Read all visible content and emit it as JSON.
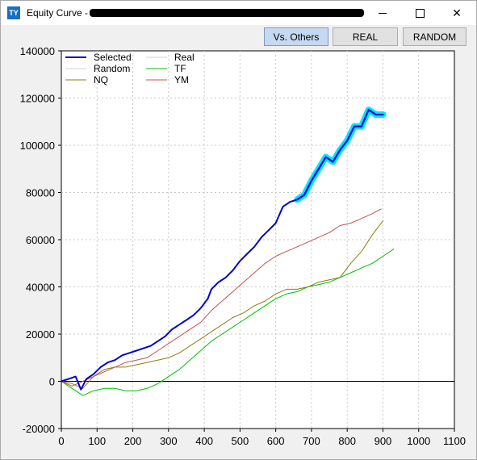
{
  "window": {
    "title": "Equity Curve -",
    "app_icon": "TY",
    "title_redacted": true
  },
  "toolbar": {
    "buttons": [
      {
        "label": "Vs. Others",
        "active": true
      },
      {
        "label": "REAL",
        "active": false
      },
      {
        "label": "RANDOM",
        "active": false
      }
    ]
  },
  "chart_data": {
    "type": "line",
    "xlim": [
      0,
      1100
    ],
    "ylim": [
      -20000,
      140000
    ],
    "x_ticks": [
      0,
      100,
      200,
      300,
      400,
      500,
      600,
      700,
      800,
      900,
      1000,
      1100
    ],
    "y_ticks": [
      -20000,
      0,
      20000,
      40000,
      60000,
      80000,
      100000,
      120000,
      140000
    ],
    "grid": true,
    "legend_position": "top-left",
    "legend": [
      {
        "name": "Selected",
        "color": "#0000d0"
      },
      {
        "name": "Real",
        "color": "#cfcfcf"
      },
      {
        "name": "Random",
        "color": "#cfcfcf"
      },
      {
        "name": "TF",
        "color": "#00c000"
      },
      {
        "name": "NQ",
        "color": "#8b7d10"
      },
      {
        "name": "YM",
        "color": "#c85050"
      }
    ],
    "series": [
      {
        "name": "Selected",
        "color": "#0000d0",
        "x": [
          0,
          20,
          40,
          55,
          70,
          90,
          110,
          130,
          150,
          170,
          190,
          210,
          230,
          250,
          270,
          290,
          310,
          330,
          350,
          370,
          390,
          410,
          420,
          440,
          460,
          480,
          500,
          520,
          540,
          560,
          580,
          600,
          620,
          640,
          660,
          680,
          700,
          720,
          740,
          760,
          780,
          800,
          820,
          840,
          860,
          880,
          900
        ],
        "y": [
          0,
          1000,
          2000,
          -3500,
          1000,
          3000,
          6000,
          8000,
          9000,
          11000,
          12000,
          13000,
          14000,
          15000,
          17000,
          19000,
          22000,
          24000,
          26000,
          28000,
          31000,
          35000,
          39000,
          42000,
          44000,
          47000,
          51000,
          54000,
          57000,
          61000,
          64000,
          67000,
          74000,
          76000,
          77000,
          79000,
          85000,
          90000,
          95000,
          93000,
          98000,
          102000,
          108000,
          108000,
          115000,
          113000,
          113000
        ]
      },
      {
        "name": "Highlight",
        "color": "#00e5ff",
        "x": [
          660,
          680,
          700,
          720,
          740,
          760,
          780,
          800,
          820,
          840,
          860,
          880,
          900
        ],
        "y": [
          77000,
          79000,
          85000,
          90000,
          95000,
          93000,
          98000,
          102000,
          108000,
          108000,
          115000,
          113000,
          113000
        ]
      },
      {
        "name": "YM",
        "color": "#c85050",
        "x": [
          0,
          30,
          60,
          90,
          120,
          150,
          180,
          210,
          240,
          270,
          300,
          330,
          360,
          390,
          420,
          450,
          480,
          510,
          540,
          570,
          600,
          630,
          660,
          690,
          720,
          750,
          780,
          810,
          840,
          870,
          895
        ],
        "y": [
          0,
          -2000,
          0,
          2000,
          4000,
          6000,
          8000,
          9000,
          10000,
          13000,
          16000,
          19000,
          22000,
          25000,
          30000,
          34000,
          38000,
          42000,
          46000,
          50000,
          53000,
          55000,
          57000,
          59000,
          61000,
          63000,
          66000,
          67000,
          69000,
          71000,
          73000
        ]
      },
      {
        "name": "NQ",
        "color": "#8b7d10",
        "x": [
          0,
          30,
          60,
          90,
          120,
          150,
          180,
          210,
          240,
          270,
          300,
          330,
          360,
          390,
          420,
          450,
          480,
          510,
          540,
          570,
          600,
          630,
          660,
          690,
          720,
          750,
          780,
          810,
          840,
          870,
          900
        ],
        "y": [
          0,
          -1000,
          -3000,
          2000,
          5000,
          6000,
          6000,
          7000,
          8000,
          9000,
          10000,
          12000,
          15000,
          18000,
          21000,
          24000,
          27000,
          29000,
          32000,
          34000,
          37000,
          39000,
          39000,
          40000,
          42000,
          43000,
          44000,
          50000,
          55000,
          62000,
          68000
        ]
      },
      {
        "name": "TF",
        "color": "#00c000",
        "x": [
          0,
          30,
          60,
          90,
          120,
          150,
          180,
          210,
          240,
          270,
          300,
          330,
          360,
          390,
          420,
          450,
          480,
          510,
          540,
          570,
          600,
          630,
          660,
          690,
          720,
          750,
          780,
          810,
          840,
          870,
          900,
          930
        ],
        "y": [
          0,
          -3000,
          -6000,
          -4000,
          -3000,
          -3000,
          -4000,
          -4000,
          -3000,
          -1000,
          2000,
          5000,
          9000,
          13000,
          17000,
          20000,
          23000,
          26000,
          29000,
          32000,
          35000,
          37000,
          38000,
          40000,
          41000,
          42000,
          44000,
          46000,
          48000,
          50000,
          53000,
          56000
        ]
      }
    ]
  }
}
